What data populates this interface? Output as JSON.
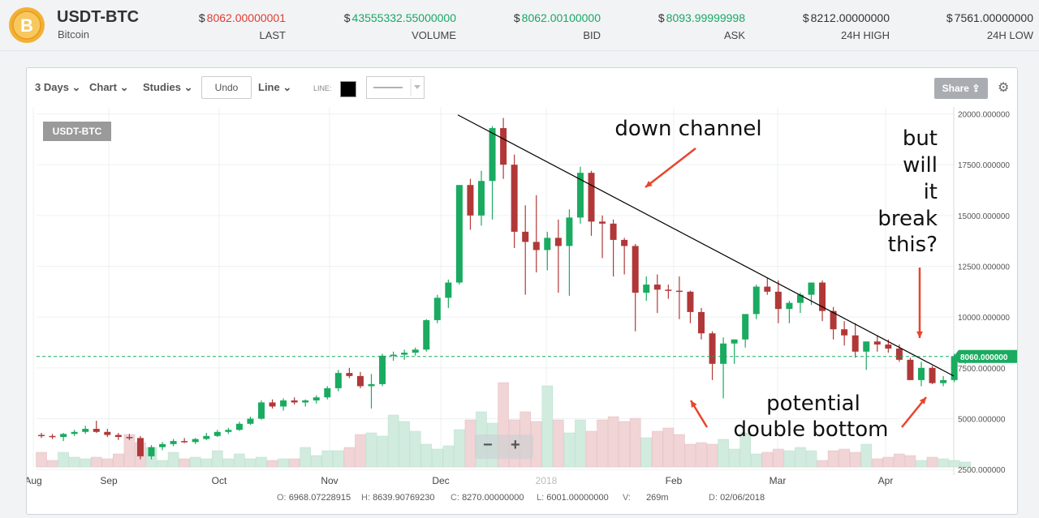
{
  "header": {
    "pair": "USDT-BTC",
    "coin_name": "Bitcoin",
    "currency_symbol": "$",
    "stats": [
      {
        "value": "8062.00000001",
        "label": "LAST",
        "color": "#e03c31"
      },
      {
        "value": "43555332.55000000",
        "label": "VOLUME",
        "color": "#18a865"
      },
      {
        "value": "8062.00100000",
        "label": "BID",
        "color": "#18a865"
      },
      {
        "value": "8093.99999998",
        "label": "ASK",
        "color": "#18a865"
      },
      {
        "value": "8212.00000000",
        "label": "24H HIGH",
        "color": "#333333"
      },
      {
        "value": "7561.00000000",
        "label": "24H LOW",
        "color": "#333333"
      }
    ]
  },
  "toolbar": {
    "range": "3 Days",
    "chart": "Chart",
    "studies": "Studies",
    "undo": "Undo",
    "line": "Line",
    "line_label": "LINE:",
    "share": "Share"
  },
  "chart_data": {
    "type": "candlestick",
    "symbol_tag": "USDT-BTC",
    "y_ticks": [
      "20000.000000",
      "17500.000000",
      "15000.000000",
      "12500.000000",
      "10000.000000",
      "7500.000000",
      "5000.000000",
      "2500.000000"
    ],
    "x_labels": [
      "Aug",
      "Sep",
      "Oct",
      "Nov",
      "Dec",
      "2018",
      "Feb",
      "Mar",
      "Apr"
    ],
    "last_price_label": "8060.000000",
    "last_price": 8060,
    "colors": {
      "up": "#1aab60",
      "down": "#b13838",
      "up_vol": "#d1ebdf",
      "down_vol": "#f0d4d6",
      "annotation": "#e8452b"
    },
    "candles": [
      [
        4200,
        4300,
        4050,
        4150
      ],
      [
        4150,
        4250,
        4000,
        4100
      ],
      [
        4100,
        4300,
        3900,
        4250
      ],
      [
        4250,
        4450,
        4150,
        4350
      ],
      [
        4350,
        4650,
        4250,
        4500
      ],
      [
        4500,
        4900,
        4300,
        4350
      ],
      [
        4350,
        4500,
        4100,
        4200
      ],
      [
        4200,
        4300,
        3950,
        4100
      ],
      [
        4100,
        4250,
        3950,
        4050
      ],
      [
        4050,
        4150,
        3000,
        3150
      ],
      [
        3150,
        3700,
        3000,
        3600
      ],
      [
        3600,
        3850,
        3450,
        3750
      ],
      [
        3750,
        4000,
        3650,
        3900
      ],
      [
        3900,
        4050,
        3800,
        3850
      ],
      [
        3850,
        4050,
        3750,
        4000
      ],
      [
        4000,
        4300,
        3950,
        4150
      ],
      [
        4150,
        4450,
        4100,
        4350
      ],
      [
        4350,
        4550,
        4250,
        4450
      ],
      [
        4450,
        4850,
        4400,
        4750
      ],
      [
        4750,
        5100,
        4700,
        5000
      ],
      [
        5000,
        5900,
        4950,
        5800
      ],
      [
        5800,
        5950,
        5500,
        5600
      ],
      [
        5600,
        6000,
        5400,
        5900
      ],
      [
        5900,
        6050,
        5700,
        5800
      ],
      [
        5800,
        5950,
        5600,
        5900
      ],
      [
        5900,
        6150,
        5750,
        6050
      ],
      [
        6050,
        6600,
        5950,
        6500
      ],
      [
        6500,
        7400,
        6350,
        7250
      ],
      [
        7250,
        7500,
        7000,
        7100
      ],
      [
        7100,
        7300,
        6500,
        6600
      ],
      [
        6600,
        7200,
        5500,
        6700
      ],
      [
        6700,
        8200,
        6600,
        8100
      ],
      [
        8100,
        8300,
        7850,
        8150
      ],
      [
        8150,
        8400,
        7900,
        8250
      ],
      [
        8250,
        8500,
        8100,
        8400
      ],
      [
        8400,
        9900,
        8300,
        9850
      ],
      [
        9850,
        11100,
        9700,
        10950
      ],
      [
        10950,
        11850,
        10450,
        11700
      ],
      [
        11700,
        16500,
        11600,
        16500
      ],
      [
        16500,
        16800,
        14300,
        15000
      ],
      [
        15000,
        17200,
        14500,
        16700
      ],
      [
        16700,
        19400,
        14800,
        19300
      ],
      [
        19300,
        19800,
        16800,
        17500
      ],
      [
        17500,
        18000,
        13400,
        14200
      ],
      [
        14200,
        15500,
        11100,
        13700
      ],
      [
        13700,
        16000,
        12200,
        13300
      ],
      [
        13300,
        14200,
        12300,
        13900
      ],
      [
        13900,
        14800,
        11200,
        13500
      ],
      [
        13500,
        15300,
        11050,
        14900
      ],
      [
        14900,
        17400,
        14600,
        17100
      ],
      [
        17100,
        17200,
        14000,
        14700
      ],
      [
        14700,
        15000,
        12900,
        14600
      ],
      [
        14600,
        14800,
        12000,
        13800
      ],
      [
        13800,
        13900,
        12100,
        13500
      ],
      [
        13500,
        13600,
        9300,
        11200
      ],
      [
        11200,
        12000,
        10800,
        11600
      ],
      [
        11600,
        12100,
        10200,
        11350
      ],
      [
        11350,
        11600,
        10900,
        11300
      ],
      [
        11300,
        12000,
        9900,
        11250
      ],
      [
        11250,
        11300,
        9700,
        10250
      ],
      [
        10250,
        10450,
        8900,
        9200
      ],
      [
        9200,
        9300,
        6900,
        7700
      ],
      [
        7700,
        9000,
        6000,
        8700
      ],
      [
        8700,
        8900,
        7700,
        8900
      ],
      [
        8900,
        10100,
        8500,
        10150
      ],
      [
        10150,
        11600,
        9900,
        11500
      ],
      [
        11500,
        11900,
        11100,
        11250
      ],
      [
        11250,
        11800,
        9700,
        10400
      ],
      [
        10400,
        10800,
        9700,
        10700
      ],
      [
        10700,
        11200,
        10200,
        11100
      ],
      [
        11100,
        11700,
        10600,
        11700
      ],
      [
        11700,
        11800,
        9800,
        10300
      ],
      [
        10300,
        10500,
        8900,
        9400
      ],
      [
        9400,
        9800,
        8600,
        9100
      ],
      [
        9100,
        9700,
        8000,
        8300
      ],
      [
        8300,
        8800,
        7400,
        8800
      ],
      [
        8800,
        9100,
        8300,
        8650
      ],
      [
        8650,
        8900,
        8250,
        8450
      ],
      [
        8450,
        8650,
        7800,
        7900
      ],
      [
        7900,
        8000,
        6900,
        6900
      ],
      [
        6900,
        7800,
        6600,
        7500
      ],
      [
        7500,
        7600,
        6700,
        6750
      ],
      [
        6750,
        7100,
        6600,
        6900
      ],
      [
        6900,
        8200,
        6800,
        8060
      ],
      [
        8060,
        8200,
        7700,
        8060
      ]
    ],
    "volumes": [
      0.09,
      0.04,
      0.09,
      0.06,
      0.05,
      0.06,
      0.05,
      0.08,
      0.2,
      0.15,
      0.12,
      0.04,
      0.09,
      0.05,
      0.06,
      0.05,
      0.1,
      0.05,
      0.08,
      0.05,
      0.06,
      0.04,
      0.05,
      0.05,
      0.12,
      0.07,
      0.1,
      0.1,
      0.12,
      0.2,
      0.21,
      0.19,
      0.32,
      0.28,
      0.22,
      0.14,
      0.11,
      0.13,
      0.23,
      0.29,
      0.34,
      0.27,
      0.52,
      0.29,
      0.34,
      0.28,
      0.5,
      0.29,
      0.21,
      0.29,
      0.22,
      0.29,
      0.31,
      0.28,
      0.3,
      0.18,
      0.22,
      0.24,
      0.2,
      0.14,
      0.15,
      0.14,
      0.17,
      0.11,
      0.21,
      0.08,
      0.09,
      0.11,
      0.1,
      0.12,
      0.1,
      0.04,
      0.1,
      0.11,
      0.09,
      0.14,
      0.05,
      0.06,
      0.08,
      0.07,
      0.04,
      0.06,
      0.05,
      0.04,
      0.03
    ],
    "trendline": [
      [
        19950,
        7100
      ]
    ],
    "annotations": [
      "down channel",
      "but",
      "will",
      "it",
      "break",
      "this?",
      "potential",
      "double bottom"
    ]
  },
  "ohlc_bar": {
    "o_label": "O:",
    "o": "6968.07228915",
    "h_label": "H:",
    "h": "8639.90769230",
    "c_label": "C:",
    "c": "8270.00000000",
    "l_label": "L:",
    "l": "6001.00000000",
    "v_label": "V:",
    "v": "269m",
    "d_label": "D:",
    "d": "02/06/2018"
  }
}
